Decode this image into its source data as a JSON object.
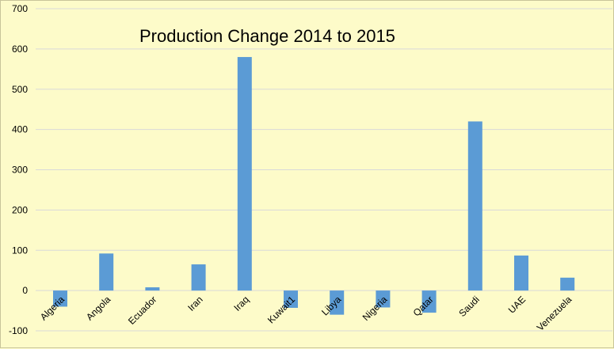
{
  "chart_data": {
    "type": "bar",
    "title": "Production Change 2014 to 2015",
    "xlabel": "",
    "ylabel": "",
    "categories": [
      "Algeria",
      "Angola",
      "Ecuador",
      "Iran",
      "Iraq",
      "Kuwait1",
      "Libya",
      "Nigeria",
      "Qatar",
      "Saudi",
      "UAE",
      "Venezuela"
    ],
    "values": [
      -40,
      92,
      8,
      65,
      580,
      -43,
      -60,
      -42,
      -55,
      420,
      87,
      32
    ],
    "ylim": [
      -100,
      700
    ],
    "yticks": [
      -100,
      0,
      100,
      200,
      300,
      400,
      500,
      600,
      700
    ],
    "grid": true,
    "legend": "none",
    "bar_color": "#5b9bd5",
    "grid_color": "#d9d9d9",
    "background_color": "#fdfbc9"
  }
}
